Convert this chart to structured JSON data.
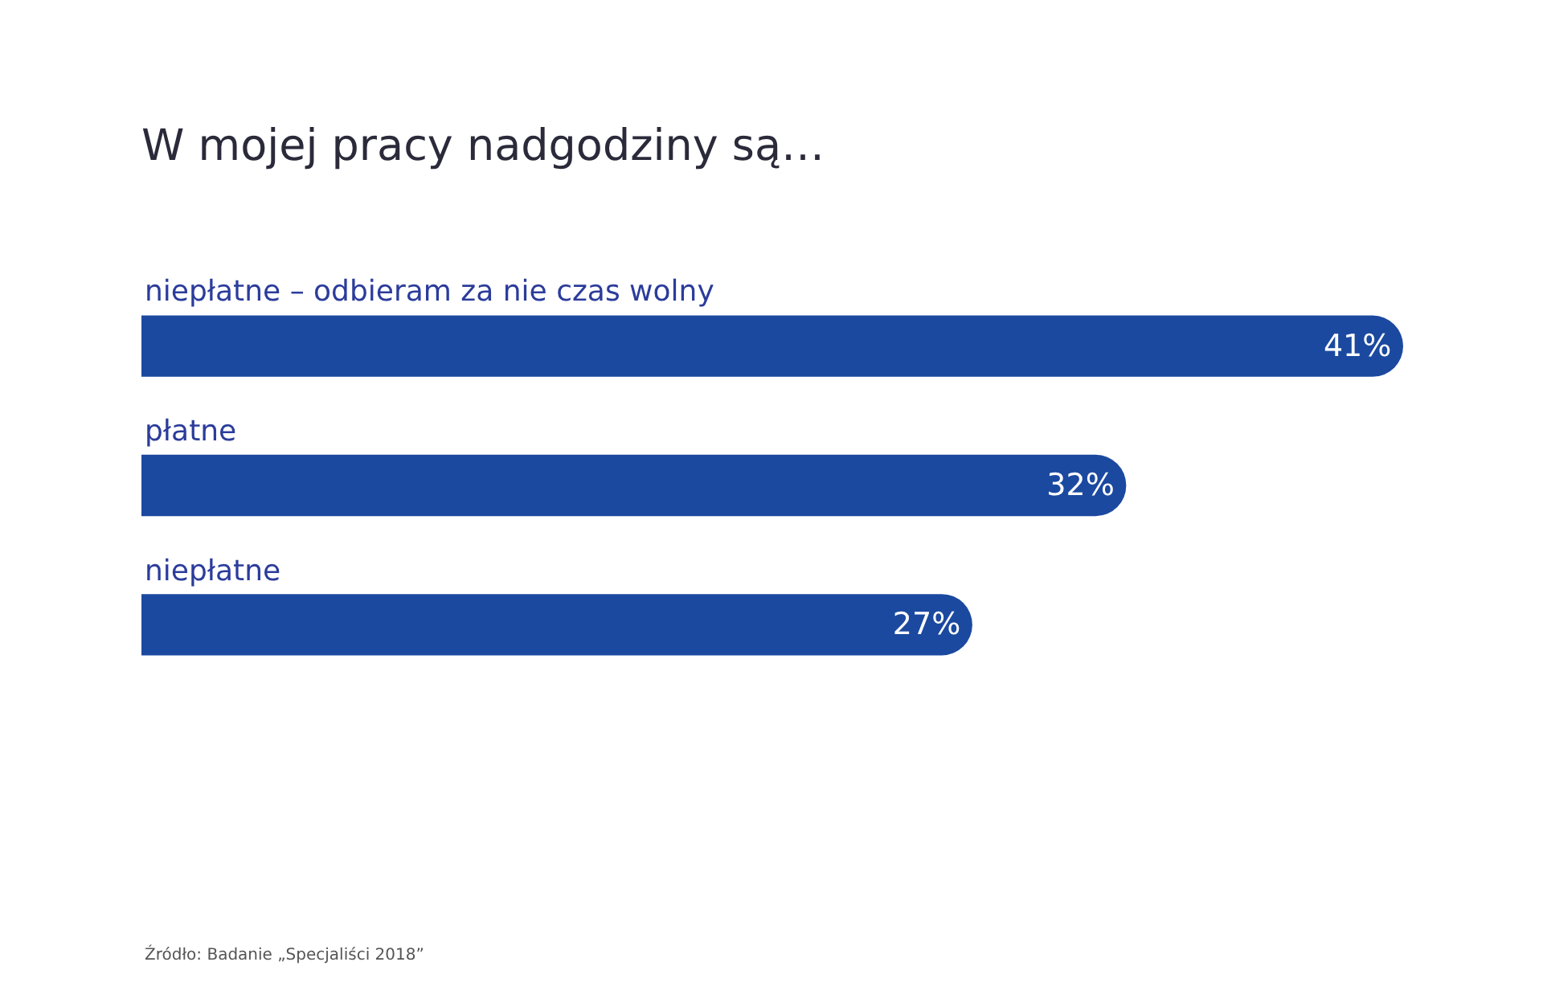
{
  "chart_data": {
    "type": "bar",
    "orientation": "horizontal",
    "title": "W mojej pracy nadgodziny są…",
    "categories": [
      "niepłatne – odbieram za nie czas wolny",
      "płatne",
      "niepłatne"
    ],
    "values": [
      41,
      32,
      27
    ],
    "value_labels": [
      "41%",
      "32%",
      "27%"
    ],
    "color": "#1b49a0",
    "annotations": [
      "Źródło: Badanie „Specjaliści 2018”"
    ]
  }
}
